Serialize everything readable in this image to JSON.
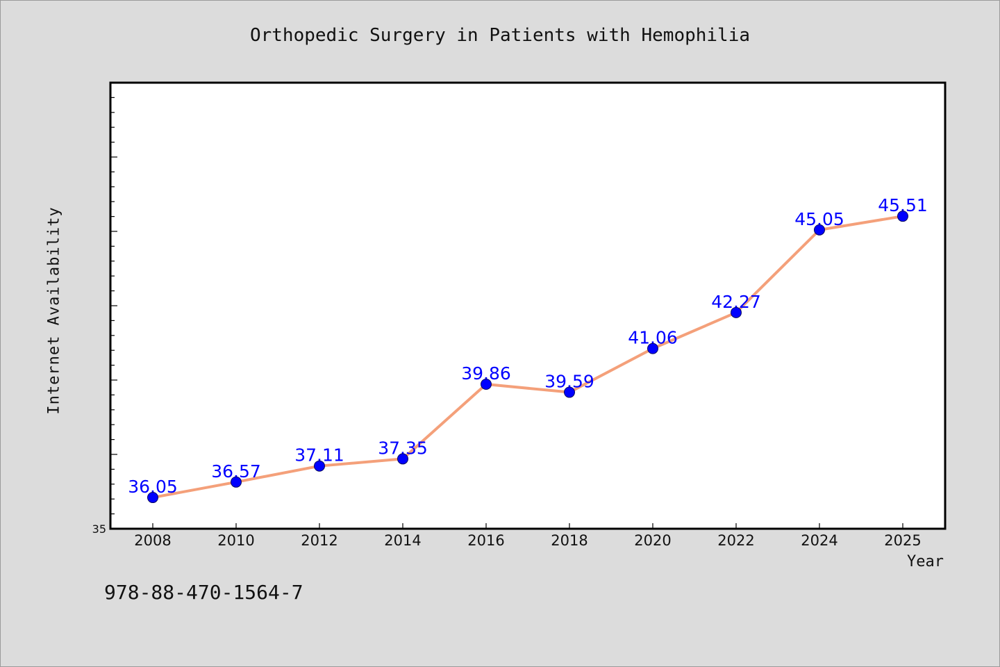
{
  "chart_data": {
    "type": "line",
    "title": "Orthopedic Surgery in Patients with Hemophilia",
    "xlabel": "Year",
    "ylabel": "Internet Availability",
    "x": [
      "2008",
      "2010",
      "2012",
      "2014",
      "2016",
      "2018",
      "2020",
      "2022",
      "2024",
      "2025"
    ],
    "series": [
      {
        "values": [
          36.05,
          36.57,
          37.11,
          37.35,
          39.86,
          39.59,
          41.06,
          42.27,
          45.05,
          45.51
        ],
        "data_labels": [
          "36.05",
          "36.57",
          "37.11",
          "37.35",
          "39.86",
          "39.59",
          "41.06",
          "42.27",
          "45.05",
          "45.51"
        ],
        "line_color": "#f4a07a",
        "marker_color": "#0000ff"
      }
    ],
    "ylim": [
      35,
      50
    ],
    "y_tick_labels": [
      "35"
    ],
    "grid": false,
    "legend": "none"
  },
  "footer": {
    "code": "978-88-470-1564-7"
  },
  "colors": {
    "background": "#dcdcdc",
    "plot_background": "#ffffff",
    "label_color": "#0000ff"
  }
}
